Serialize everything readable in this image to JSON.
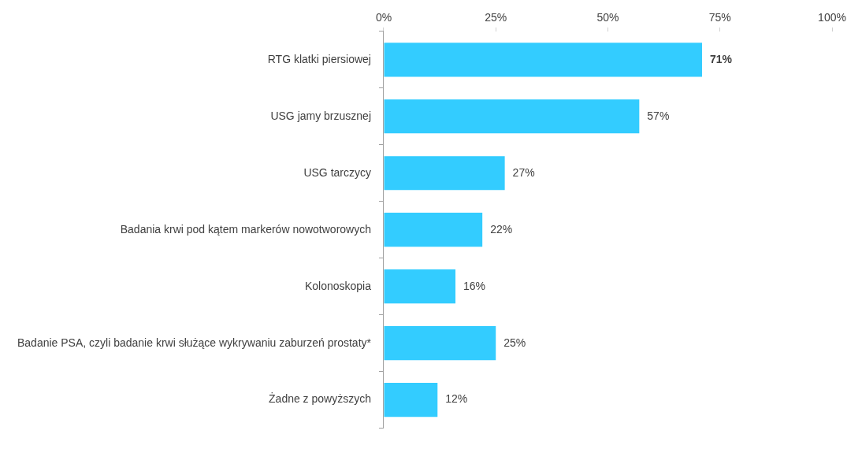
{
  "chart_data": {
    "type": "bar",
    "orientation": "horizontal",
    "categories": [
      "RTG klatki piersiowej",
      "USG jamy brzusznej",
      "USG tarczycy",
      "Badania krwi pod kątem markerów nowotworowych",
      "Kolonoskopia",
      "Badanie PSA, czyli badanie krwi służące wykrywaniu zaburzeń prostaty*",
      "Żadne z powyższych"
    ],
    "values": [
      71,
      57,
      27,
      22,
      16,
      25,
      12
    ],
    "value_labels": [
      "71%",
      "57%",
      "27%",
      "22%",
      "16%",
      "25%",
      "12%"
    ],
    "color": "#33ccff",
    "xlim": [
      0,
      100
    ],
    "xticks": [
      {
        "value": 0,
        "label": "0%"
      },
      {
        "value": 25,
        "label": "25%"
      },
      {
        "value": 50,
        "label": "50%"
      },
      {
        "value": 75,
        "label": "75%"
      },
      {
        "value": 100,
        "label": "100%"
      }
    ],
    "grid": false,
    "legend": false
  }
}
